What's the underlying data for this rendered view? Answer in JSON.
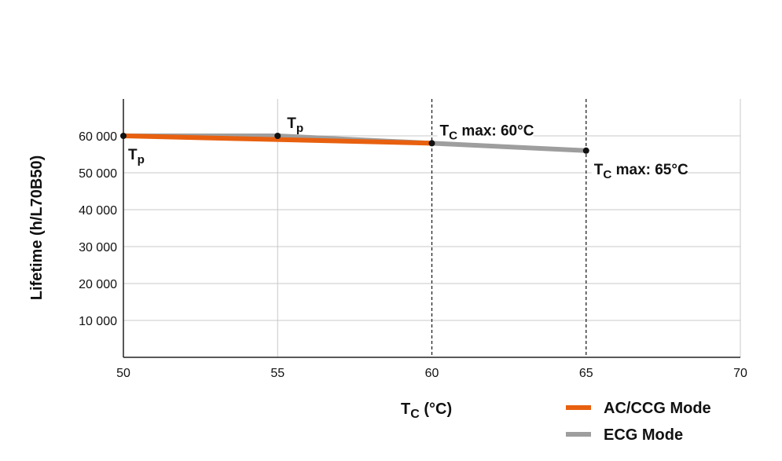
{
  "chart_data": {
    "type": "line",
    "title": "",
    "xlabel": {
      "main": "T",
      "sub": "C",
      "rest": " (°C)"
    },
    "ylabel": "Lifetime (h/L70B50)",
    "xlim": [
      50,
      70
    ],
    "ylim": [
      0,
      70000
    ],
    "x_ticks": [
      50,
      55,
      60,
      65,
      70
    ],
    "x_tick_labels": [
      "50",
      "55",
      "60",
      "65",
      "70"
    ],
    "y_ticks": [
      10000,
      20000,
      30000,
      40000,
      50000,
      60000
    ],
    "y_tick_labels": [
      "10 000",
      "20 000",
      "30 000",
      "40 000",
      "50 000",
      "60 000"
    ],
    "grid": true,
    "dashed_vlines": [
      60,
      65
    ],
    "legend_position": "bottom-right",
    "series": [
      {
        "name": "ECG Mode",
        "color": "#9e9e9e",
        "x": [
          50,
          55,
          60,
          65
        ],
        "y": [
          60000,
          60000,
          58000,
          56000
        ]
      },
      {
        "name": "AC/CCG Mode",
        "color": "#e8600f",
        "x": [
          50,
          60
        ],
        "y": [
          60000,
          58000
        ]
      }
    ],
    "annotations": [
      {
        "main": "T",
        "sub": "p",
        "rest": "",
        "x": 50,
        "y": 60000,
        "pos": "below"
      },
      {
        "main": "T",
        "sub": "p",
        "rest": "",
        "x": 55,
        "y": 60000,
        "pos": "above"
      },
      {
        "main": "T",
        "sub": "C",
        "rest": " max: 60°C",
        "x": 60,
        "y": 58000,
        "pos": "above"
      },
      {
        "main": "T",
        "sub": "C",
        "rest": " max: 65°C",
        "x": 65,
        "y": 56000,
        "pos": "below"
      }
    ]
  }
}
